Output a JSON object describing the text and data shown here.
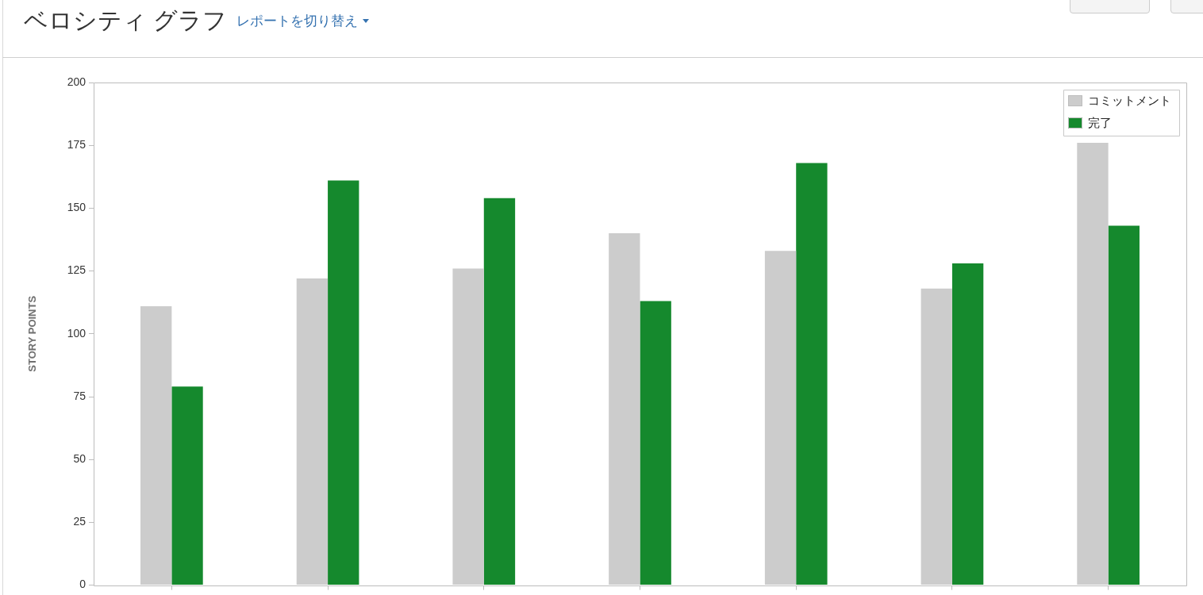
{
  "chart_data": {
    "type": "bar",
    "title": "ベロシティ グラフ",
    "subtitle": "レポートを切り替え",
    "ylabel": "STORY POINTS",
    "categories": [
      null,
      null,
      null,
      null,
      null,
      null,
      null
    ],
    "series": [
      {
        "name": "コミットメント",
        "color": "#cccccc",
        "values": [
          111,
          122,
          126,
          140,
          133,
          118,
          176
        ]
      },
      {
        "name": "完了",
        "color": "#15892d",
        "values": [
          79,
          161,
          154,
          113,
          168,
          128,
          143
        ]
      }
    ],
    "ylim": [
      0,
      200
    ],
    "yticks": [
      0,
      25,
      50,
      75,
      100,
      125,
      150,
      175,
      200
    ],
    "grid": false,
    "legend": "top right"
  }
}
